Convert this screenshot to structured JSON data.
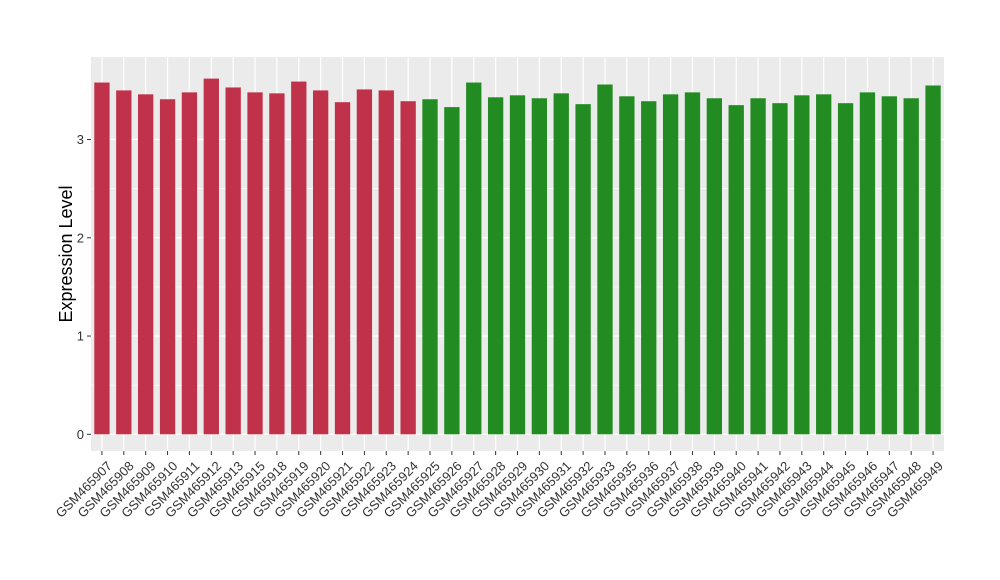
{
  "chart_data": {
    "type": "bar",
    "title": "",
    "xlabel": "",
    "ylabel": "Expression Level",
    "ylim": [
      -0.17,
      3.84
    ],
    "yticks": [
      0,
      1,
      2,
      3
    ],
    "grid": true,
    "panel_background": "#ebebeb",
    "gridline_color": "#ffffff",
    "categories": [
      "GSM465907",
      "GSM465908",
      "GSM465909",
      "GSM465910",
      "GSM465911",
      "GSM465912",
      "GSM465913",
      "GSM465915",
      "GSM465918",
      "GSM465919",
      "GSM465920",
      "GSM465921",
      "GSM465922",
      "GSM465923",
      "GSM465924",
      "GSM465925",
      "GSM465926",
      "GSM465927",
      "GSM465928",
      "GSM465929",
      "GSM465930",
      "GSM465931",
      "GSM465932",
      "GSM465933",
      "GSM465935",
      "GSM465936",
      "GSM465937",
      "GSM465938",
      "GSM465939",
      "GSM465940",
      "GSM465941",
      "GSM465942",
      "GSM465943",
      "GSM465944",
      "GSM465945",
      "GSM465946",
      "GSM465947",
      "GSM465948",
      "GSM465949"
    ],
    "values": [
      3.58,
      3.5,
      3.46,
      3.41,
      3.48,
      3.62,
      3.53,
      3.48,
      3.47,
      3.59,
      3.5,
      3.38,
      3.51,
      3.5,
      3.39,
      3.41,
      3.33,
      3.58,
      3.43,
      3.45,
      3.42,
      3.47,
      3.36,
      3.56,
      3.44,
      3.39,
      3.46,
      3.48,
      3.42,
      3.35,
      3.42,
      3.37,
      3.45,
      3.46,
      3.37,
      3.48,
      3.44,
      3.42,
      3.55
    ],
    "bar_colors": [
      "#c0314a",
      "#c0314a",
      "#c0314a",
      "#c0314a",
      "#c0314a",
      "#c0314a",
      "#c0314a",
      "#c0314a",
      "#c0314a",
      "#c0314a",
      "#c0314a",
      "#c0314a",
      "#c0314a",
      "#c0314a",
      "#c0314a",
      "#228b22",
      "#228b22",
      "#228b22",
      "#228b22",
      "#228b22",
      "#228b22",
      "#228b22",
      "#228b22",
      "#228b22",
      "#228b22",
      "#228b22",
      "#228b22",
      "#228b22",
      "#228b22",
      "#228b22",
      "#228b22",
      "#228b22",
      "#228b22",
      "#228b22",
      "#228b22",
      "#228b22",
      "#228b22",
      "#228b22",
      "#228b22"
    ]
  }
}
